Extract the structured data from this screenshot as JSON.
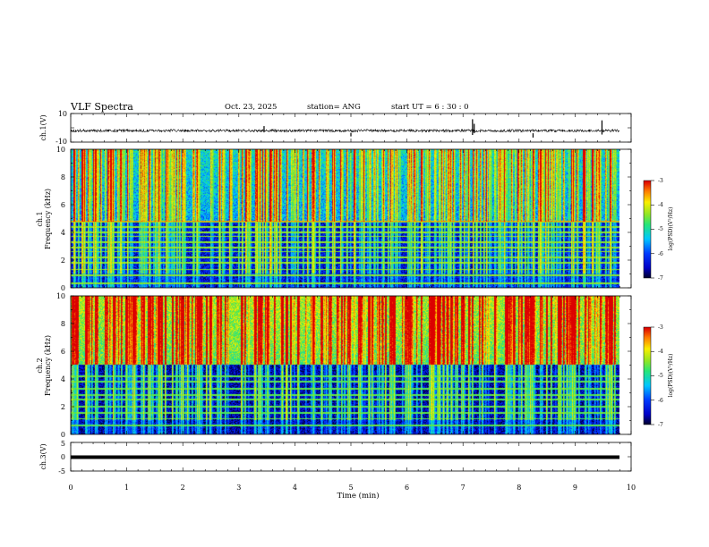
{
  "header": {
    "title": "VLF Spectra",
    "date": "Oct. 23, 2025",
    "station": "station= ANG",
    "start_ut": "start  UT =   6 : 30 : 0"
  },
  "chart_data": [
    {
      "type": "line",
      "panel": "ch1-waveform",
      "ylabel": "ch.1(V)",
      "ylim": [
        -10,
        10
      ],
      "y_ticks": [
        "10",
        "-10"
      ],
      "x_range_min": [
        0,
        9.83
      ],
      "signal": "noise around -2 V, amplitude about ±1 V with occasional spikes",
      "baseline_v": -2
    },
    {
      "type": "heatmap",
      "panel": "ch1-spectrogram",
      "ylabel_top": "ch.1",
      "ylabel": "Frequency (kHz)",
      "ylim": [
        0,
        10
      ],
      "y_ticks": [
        "0",
        "2",
        "4",
        "6",
        "8",
        "10"
      ],
      "x_range_min": [
        0,
        9.83
      ],
      "colorbar": {
        "label": "log(PSD)(V²/Hz)",
        "range": [
          -7,
          -3
        ],
        "ticks": [
          "-3",
          "-4",
          "-5",
          "-6",
          "-7"
        ]
      },
      "background_level": -6.4,
      "upper_band_level": -5.5,
      "band_edge_khz": 4.8,
      "tone_lines_khz": [
        0.3,
        0.9,
        1.3,
        1.8,
        2.2,
        2.6,
        2.9,
        3.3,
        3.7,
        4.0,
        4.4,
        4.75
      ],
      "sferics_per_min": 30
    },
    {
      "type": "heatmap",
      "panel": "ch2-spectrogram",
      "ylabel_top": "ch.2",
      "ylabel": "Frequency (kHz)",
      "ylim": [
        0,
        10
      ],
      "y_ticks": [
        "0",
        "2",
        "4",
        "6",
        "8",
        "10"
      ],
      "x_range_min": [
        0,
        9.83
      ],
      "colorbar": {
        "label": "log(PSD)(V²/Hz)",
        "range": [
          -7,
          -3
        ],
        "ticks": [
          "-3",
          "-4",
          "-5",
          "-6",
          "-7"
        ]
      },
      "background_level": -6.6,
      "upper_band_level": -4.6,
      "band_edge_khz": 5.0,
      "tone_lines_khz": [
        0.6,
        1.1,
        1.5,
        2.0,
        2.5,
        2.8,
        3.3,
        3.8,
        4.2
      ],
      "sferics_per_min": 30
    },
    {
      "type": "line",
      "panel": "ch3-waveform",
      "ylabel": "ch.3(V)",
      "ylim": [
        -5,
        5
      ],
      "y_ticks": [
        "5",
        "0",
        "-5"
      ],
      "x_range_min": [
        0,
        9.83
      ],
      "baseline_v": 0
    }
  ],
  "x_axis": {
    "label": "Time (min)",
    "ticks": [
      "0",
      "1",
      "2",
      "3",
      "4",
      "5",
      "6",
      "7",
      "8",
      "9",
      "10"
    ],
    "xlim": [
      0,
      10
    ]
  }
}
